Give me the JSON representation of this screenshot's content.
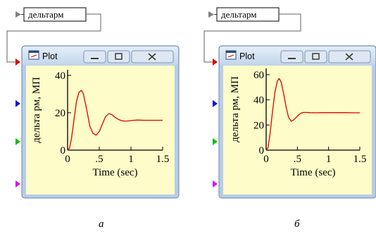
{
  "panels": [
    {
      "caption": "а",
      "block_label": "дельтарм",
      "window_title": "Plot",
      "buttons": {
        "minimize": "minimize",
        "maximize": "maximize",
        "close": "close"
      },
      "port_colors": [
        "#e00000",
        "#1010e0",
        "#10c010",
        "#e010e0"
      ],
      "chart_data": {
        "type": "line",
        "title": "",
        "xlabel": "Time (sec)",
        "ylabel": "дельта рм, МП",
        "xlim": [
          0,
          1.5
        ],
        "ylim": [
          0,
          43
        ],
        "xticks": [
          0,
          0.5,
          1,
          1.5
        ],
        "xtick_labels": [
          "0",
          ".5",
          "1",
          "1.5"
        ],
        "yticks": [
          0,
          20,
          40
        ],
        "ytick_labels": [
          "0",
          "20",
          "40"
        ],
        "grid": false,
        "series": [
          {
            "color": "#e00000",
            "x": [
              0,
              0.03,
              0.06,
              0.1,
              0.14,
              0.18,
              0.22,
              0.25,
              0.3,
              0.35,
              0.4,
              0.45,
              0.5,
              0.55,
              0.6,
              0.65,
              0.7,
              0.75,
              0.8,
              0.85,
              0.9,
              0.95,
              1.0,
              1.05,
              1.1,
              1.2,
              1.3,
              1.4,
              1.5
            ],
            "y": [
              0,
              1,
              6,
              16,
              26,
              31,
              32,
              30,
              22,
              13,
              9,
              8,
              10,
              14,
              18,
              19.5,
              19,
              17.5,
              16.5,
              15.8,
              15.5,
              15.6,
              15.8,
              16,
              16.1,
              16,
              16,
              16,
              16
            ]
          }
        ]
      }
    },
    {
      "caption": "б",
      "block_label": "дельтарм",
      "window_title": "Plot",
      "buttons": {
        "minimize": "minimize",
        "maximize": "maximize",
        "close": "close"
      },
      "port_colors": [
        "#e00000",
        "#1010e0",
        "#10c010",
        "#e010e0"
      ],
      "chart_data": {
        "type": "line",
        "title": "",
        "xlabel": "Time (sec)",
        "ylabel": "дельта рм, МП",
        "xlim": [
          0,
          1.5
        ],
        "ylim": [
          0,
          65
        ],
        "xticks": [
          0,
          0.5,
          1,
          1.5
        ],
        "xtick_labels": [
          "0",
          ".5",
          "1",
          "1.5"
        ],
        "yticks": [
          0,
          20,
          40,
          60
        ],
        "ytick_labels": [
          "0",
          "20",
          "40",
          "60"
        ],
        "grid": false,
        "series": [
          {
            "color": "#e00000",
            "x": [
              0,
              0.03,
              0.06,
              0.1,
              0.14,
              0.18,
              0.21,
              0.24,
              0.28,
              0.32,
              0.36,
              0.4,
              0.44,
              0.48,
              0.52,
              0.56,
              0.6,
              0.65,
              0.7,
              0.8,
              0.9,
              1.0,
              1.1,
              1.2,
              1.3,
              1.4,
              1.5
            ],
            "y": [
              0,
              2,
              12,
              30,
              46,
              55,
              57,
              54,
              45,
              34,
              26,
              23,
              24,
              26,
              28,
              29.5,
              30,
              30,
              29.8,
              29.7,
              29.8,
              29.8,
              29.8,
              29.8,
              29.8,
              29.7,
              29.7
            ]
          }
        ]
      }
    }
  ]
}
